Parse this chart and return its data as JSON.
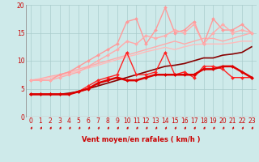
{
  "xlabel": "Vent moyen/en rafales ( km/h )",
  "xlim": [
    -0.5,
    23.5
  ],
  "ylim": [
    0,
    20
  ],
  "yticks": [
    0,
    5,
    10,
    15,
    20
  ],
  "xticks": [
    0,
    1,
    2,
    3,
    4,
    5,
    6,
    7,
    8,
    9,
    10,
    11,
    12,
    13,
    14,
    15,
    16,
    17,
    18,
    19,
    20,
    21,
    22,
    23
  ],
  "bg_color": "#ceeaea",
  "grid_color": "#aacccc",
  "lines": [
    {
      "x": [
        0,
        1,
        2,
        3,
        4,
        5,
        6,
        7,
        8,
        9,
        10,
        11,
        12,
        13,
        14,
        15,
        16,
        17,
        18,
        19,
        20,
        21,
        22,
        23
      ],
      "y": [
        6.5,
        6.8,
        7.2,
        7.5,
        8.0,
        8.5,
        9.0,
        9.5,
        10.0,
        10.5,
        11.0,
        11.5,
        12.0,
        12.5,
        13.0,
        13.5,
        13.0,
        13.5,
        14.0,
        14.0,
        13.5,
        14.0,
        14.5,
        15.0
      ],
      "color": "#ffaaaa",
      "lw": 1.0,
      "marker": null,
      "zorder": 2
    },
    {
      "x": [
        0,
        1,
        2,
        3,
        4,
        5,
        6,
        7,
        8,
        9,
        10,
        11,
        12,
        13,
        14,
        15,
        16,
        17,
        18,
        19,
        20,
        21,
        22,
        23
      ],
      "y": [
        6.5,
        6.7,
        7.0,
        7.3,
        7.8,
        8.2,
        8.7,
        9.2,
        9.7,
        10.2,
        10.7,
        11.1,
        11.6,
        12.0,
        12.4,
        12.0,
        12.5,
        12.9,
        13.0,
        13.0,
        13.0,
        13.2,
        13.5,
        13.5
      ],
      "color": "#ffbbbb",
      "lw": 1.0,
      "marker": null,
      "zorder": 2
    },
    {
      "x": [
        0,
        1,
        2,
        3,
        4,
        5,
        6,
        7,
        8,
        9,
        10,
        11,
        12,
        13,
        14,
        15,
        16,
        17,
        18,
        19,
        20,
        21,
        22,
        23
      ],
      "y": [
        6.5,
        6.5,
        6.5,
        7.5,
        8.0,
        9.0,
        10.0,
        11.0,
        12.0,
        13.0,
        17.0,
        17.5,
        13.0,
        15.5,
        19.5,
        15.0,
        15.5,
        17.0,
        13.0,
        17.5,
        15.5,
        15.5,
        16.5,
        15.0
      ],
      "color": "#ff9999",
      "lw": 1.0,
      "marker": "D",
      "markersize": 2.0,
      "zorder": 3
    },
    {
      "x": [
        0,
        1,
        2,
        3,
        4,
        5,
        6,
        7,
        8,
        9,
        10,
        11,
        12,
        13,
        14,
        15,
        16,
        17,
        18,
        19,
        20,
        21,
        22,
        23
      ],
      "y": [
        6.5,
        6.5,
        6.5,
        7.0,
        7.5,
        8.0,
        9.0,
        10.0,
        11.0,
        12.0,
        13.5,
        13.0,
        14.5,
        14.0,
        14.5,
        15.5,
        15.0,
        16.5,
        13.0,
        15.0,
        16.5,
        15.0,
        15.5,
        15.0
      ],
      "color": "#ffaaaa",
      "lw": 1.0,
      "marker": "D",
      "markersize": 2.0,
      "zorder": 3
    },
    {
      "x": [
        0,
        1,
        2,
        3,
        4,
        5,
        6,
        7,
        8,
        9,
        10,
        11,
        12,
        13,
        14,
        15,
        16,
        17,
        18,
        19,
        20,
        21,
        22,
        23
      ],
      "y": [
        4.0,
        4.0,
        4.0,
        4.0,
        4.0,
        4.5,
        5.5,
        6.5,
        7.0,
        7.5,
        11.5,
        7.5,
        7.5,
        8.0,
        11.5,
        7.5,
        8.0,
        7.0,
        9.0,
        9.0,
        8.5,
        7.0,
        7.0,
        7.0
      ],
      "color": "#ff2222",
      "lw": 1.0,
      "marker": "D",
      "markersize": 2.0,
      "zorder": 4
    },
    {
      "x": [
        0,
        1,
        2,
        3,
        4,
        5,
        6,
        7,
        8,
        9,
        10,
        11,
        12,
        13,
        14,
        15,
        16,
        17,
        18,
        19,
        20,
        21,
        22,
        23
      ],
      "y": [
        4.0,
        4.0,
        4.0,
        4.0,
        4.0,
        4.5,
        5.0,
        6.0,
        6.5,
        7.0,
        6.5,
        6.5,
        7.0,
        7.5,
        7.5,
        7.5,
        7.5,
        7.5,
        8.5,
        8.5,
        9.0,
        9.0,
        8.0,
        7.0
      ],
      "color": "#dd0000",
      "lw": 1.8,
      "marker": "D",
      "markersize": 2.0,
      "zorder": 5
    },
    {
      "x": [
        0,
        1,
        2,
        3,
        4,
        5,
        6,
        7,
        8,
        9,
        10,
        11,
        12,
        13,
        14,
        15,
        16,
        17,
        18,
        19,
        20,
        21,
        22,
        23
      ],
      "y": [
        4.0,
        4.0,
        4.0,
        4.0,
        4.2,
        4.5,
        5.0,
        5.5,
        6.0,
        6.5,
        7.0,
        7.5,
        8.0,
        8.5,
        9.0,
        9.2,
        9.5,
        10.0,
        10.5,
        10.5,
        11.0,
        11.2,
        11.5,
        12.5
      ],
      "color": "#880000",
      "lw": 1.2,
      "marker": null,
      "zorder": 2
    }
  ],
  "arrow_color": "#cc0000",
  "label_fontsize": 6,
  "tick_fontsize": 5.5
}
